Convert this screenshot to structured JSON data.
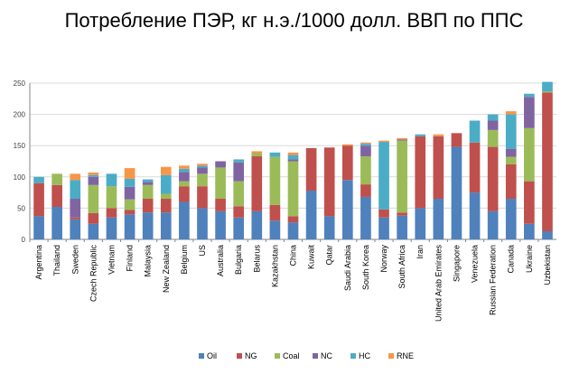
{
  "chart_data": {
    "type": "bar",
    "stacked": true,
    "title": "Потребление ПЭР, кг н.э./1000 долл. ВВП по ППС",
    "xlabel": "",
    "ylabel": "",
    "ylim": [
      0,
      250
    ],
    "yticks": [
      0,
      50,
      100,
      150,
      200,
      250
    ],
    "grid": true,
    "legend_position": "bottom",
    "categories": [
      "Argentina",
      "Thailand",
      "Sweden",
      "Czech Republic",
      "Vietnam",
      "Finland",
      "Malaysia",
      "New Zealand",
      "Belgium",
      "US",
      "Australia",
      "Bulgaria",
      "Belarus",
      "Kazakhstan",
      "China",
      "Kuwait",
      "Qatar",
      "Saudi Arabia",
      "South Korea",
      "Norway",
      "South Africa",
      "Iran",
      "United Arab Emirates",
      "Singapore",
      "Venezuela",
      "Russian Federation",
      "Canada",
      "Ukraine",
      "Uzbekistan"
    ],
    "series": [
      {
        "name": "Oil",
        "color": "#4f81bd",
        "values": [
          37,
          52,
          32,
          25,
          35,
          40,
          43,
          43,
          60,
          50,
          45,
          35,
          45,
          30,
          27,
          78,
          37,
          95,
          68,
          35,
          38,
          50,
          65,
          148,
          75,
          45,
          65,
          25,
          13
        ]
      },
      {
        "name": "NG",
        "color": "#c0504d",
        "values": [
          53,
          35,
          3,
          17,
          15,
          7,
          22,
          22,
          25,
          35,
          20,
          18,
          88,
          25,
          10,
          68,
          110,
          55,
          20,
          13,
          5,
          115,
          100,
          22,
          80,
          103,
          55,
          68,
          222
        ]
      },
      {
        "name": "Coal",
        "color": "#9bbb59",
        "values": [
          0,
          18,
          0,
          45,
          35,
          17,
          22,
          8,
          8,
          20,
          50,
          40,
          5,
          77,
          88,
          0,
          0,
          0,
          45,
          0,
          115,
          0,
          0,
          0,
          0,
          27,
          12,
          85,
          2
        ]
      },
      {
        "name": "NC",
        "color": "#8064a2",
        "values": [
          0,
          0,
          30,
          13,
          0,
          20,
          5,
          0,
          15,
          10,
          10,
          30,
          0,
          0,
          3,
          0,
          0,
          0,
          17,
          0,
          2,
          0,
          0,
          0,
          0,
          15,
          13,
          50,
          0
        ]
      },
      {
        "name": "HC",
        "color": "#4bacc6",
        "values": [
          10,
          0,
          30,
          3,
          20,
          13,
          4,
          30,
          5,
          3,
          0,
          5,
          0,
          7,
          7,
          0,
          0,
          0,
          3,
          108,
          0,
          3,
          0,
          0,
          35,
          10,
          55,
          5,
          15
        ]
      },
      {
        "name": "RNE",
        "color": "#f79646",
        "values": [
          0,
          0,
          10,
          4,
          0,
          17,
          0,
          13,
          5,
          3,
          0,
          0,
          3,
          0,
          4,
          0,
          0,
          2,
          2,
          2,
          2,
          0,
          3,
          0,
          0,
          0,
          5,
          0,
          0
        ]
      }
    ]
  }
}
